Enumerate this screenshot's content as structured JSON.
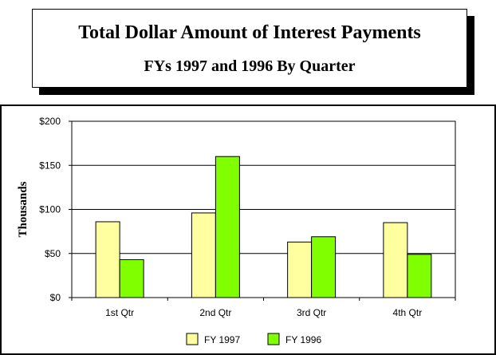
{
  "header": {
    "title": "Total Dollar Amount of Interest Payments",
    "subtitle": "FYs 1997 and 1996 By Quarter"
  },
  "chart_data": {
    "type": "bar",
    "title": "Total Dollar Amount of Interest Payments",
    "subtitle": "FYs 1997 and 1996 By Quarter",
    "xlabel": "",
    "ylabel": "Thousands",
    "categories": [
      "1st Qtr",
      "2nd Qtr",
      "3rd Qtr",
      "4th Qtr"
    ],
    "series": [
      {
        "name": "FY 1997",
        "values": [
          86,
          96,
          63,
          85
        ],
        "color": "#ffffa0"
      },
      {
        "name": "FY 1996",
        "values": [
          43,
          160,
          69,
          49
        ],
        "color": "#80ff00"
      }
    ],
    "ylim": [
      0,
      200
    ],
    "yticks": [
      0,
      50,
      100,
      150,
      200
    ],
    "ytick_labels": [
      "$0",
      "$50",
      "$100",
      "$150",
      "$200"
    ],
    "grid": true,
    "legend": "bottom"
  }
}
